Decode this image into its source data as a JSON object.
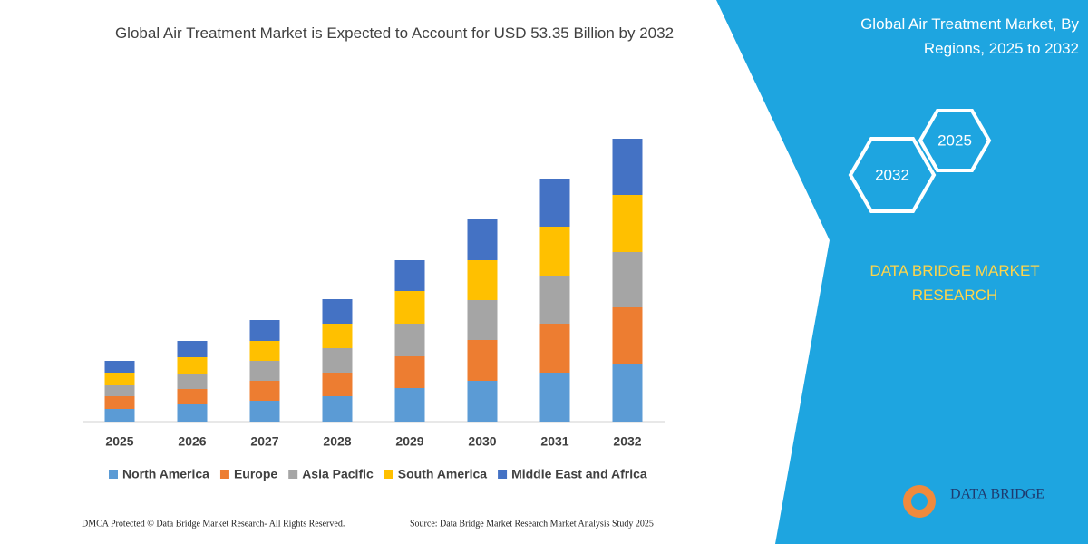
{
  "chart_data": {
    "type": "stacked-bar",
    "title": "Global Air Treatment Market is Expected to Account for USD 53.35 Billion by 2032",
    "categories": [
      "2025",
      "2026",
      "2027",
      "2028",
      "2029",
      "2030",
      "2031",
      "2032"
    ],
    "series": [
      {
        "name": "North America",
        "color": "#5b9bd5",
        "values": [
          14,
          19,
          23,
          28,
          37,
          45,
          54,
          63
        ]
      },
      {
        "name": "Europe",
        "color": "#ed7d31",
        "values": [
          14,
          17,
          22,
          26,
          35,
          45,
          54,
          63
        ]
      },
      {
        "name": "Asia Pacific",
        "color": "#a5a5a5",
        "values": [
          12,
          17,
          22,
          27,
          36,
          44,
          53,
          61
        ]
      },
      {
        "name": "South America",
        "color": "#ffc000",
        "values": [
          14,
          18,
          22,
          27,
          36,
          44,
          54,
          63
        ]
      },
      {
        "name": "Middle East and Africa",
        "color": "#4472c4",
        "values": [
          13,
          18,
          23,
          27,
          34,
          45,
          53,
          62
        ]
      }
    ],
    "ylim": [
      0,
      320
    ]
  },
  "panel": {
    "title": "Global Air Treatment Market, By Regions, 2025 to 2032",
    "hex_small": "2025",
    "hex_large": "2032",
    "brand": "DATA BRIDGE MARKET RESEARCH",
    "logo": "DATA BRIDGE"
  },
  "footer": {
    "left": "DMCA Protected © Data Bridge Market Research-  All Rights Reserved.",
    "right": "Source: Data Bridge Market Research  Market Analysis Study 2025"
  }
}
